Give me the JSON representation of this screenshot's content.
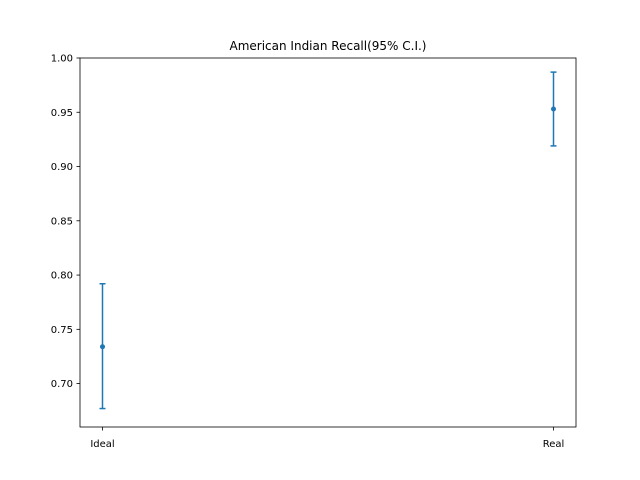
{
  "chart_data": {
    "type": "scatter",
    "title": "American Indian Recall(95% C.I.)",
    "xlabel": "",
    "ylabel": "",
    "categories": [
      "Ideal",
      "Real"
    ],
    "series": [
      {
        "values": [
          0.734,
          0.953
        ],
        "ci_lower": [
          0.677,
          0.919
        ],
        "ci_upper": [
          0.792,
          0.987
        ],
        "color": "#1f77b4"
      }
    ],
    "ylim": [
      0.66,
      1.0
    ],
    "yticks": [
      "0.70",
      "0.75",
      "0.80",
      "0.85",
      "0.90",
      "0.95",
      "1.00"
    ],
    "grid": false,
    "legend": "none"
  }
}
